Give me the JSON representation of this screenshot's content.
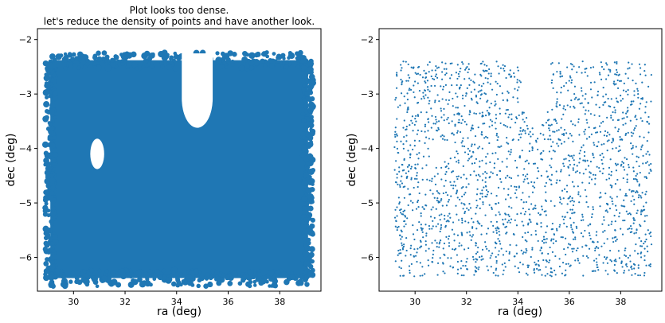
{
  "chart_data": [
    {
      "type": "scatter",
      "title_lines": [
        "Plot looks too dense.",
        "let's reduce the density of points and have another look."
      ],
      "xlabel": "ra (deg)",
      "ylabel": "dec (deg)",
      "xlim": [
        28.6,
        39.6
      ],
      "ylim": [
        -6.62,
        -1.8
      ],
      "xticks": [
        30,
        32,
        34,
        36,
        38
      ],
      "yticks": [
        -2,
        -3,
        -4,
        -5,
        -6
      ],
      "xtick_labels": [
        "30",
        "32",
        "34",
        "36",
        "38"
      ],
      "ytick_labels": [
        "−2",
        "−3",
        "−4",
        "−5",
        "−6"
      ],
      "grid": false,
      "color": "#1f77b4",
      "marker": "dense point cloud",
      "region": {
        "ra_min": 29.1,
        "ra_max": 39.1,
        "dec_min": -6.38,
        "dec_max": -2.38,
        "holes": [
          {
            "shape": "u-notch",
            "ra_center": 34.8,
            "ra_half_width": 0.6,
            "dec_top": -2.4,
            "dec_bottom": -3.62
          },
          {
            "shape": "ellipse",
            "ra_center": 30.92,
            "dec_center": -4.1,
            "ra_radius": 0.27,
            "dec_radius": 0.28
          }
        ]
      }
    },
    {
      "type": "scatter",
      "xlabel": "ra (deg)",
      "ylabel": "dec (deg)",
      "xlim": [
        28.6,
        39.6
      ],
      "ylim": [
        -6.62,
        -1.8
      ],
      "xticks": [
        30,
        32,
        34,
        36,
        38
      ],
      "yticks": [
        -2,
        -3,
        -4,
        -5,
        -6
      ],
      "xtick_labels": [
        "30",
        "32",
        "34",
        "36",
        "38"
      ],
      "ytick_labels": [
        "−2",
        "−3",
        "−4",
        "−5",
        "−6"
      ],
      "grid": false,
      "color": "#1f77b4",
      "marker": "small dots",
      "approx_points": 2000,
      "region": {
        "ra_min": 29.2,
        "ra_max": 39.2,
        "dec_min": -6.35,
        "dec_max": -2.4,
        "holes": [
          {
            "shape": "u-notch",
            "ra_center": 34.7,
            "ra_half_width": 0.55,
            "dec_top": -2.4,
            "dec_bottom": -3.55
          },
          {
            "shape": "ellipse",
            "ra_center": 30.95,
            "dec_center": -4.1,
            "ra_radius": 0.25,
            "dec_radius": 0.26
          }
        ]
      }
    }
  ]
}
